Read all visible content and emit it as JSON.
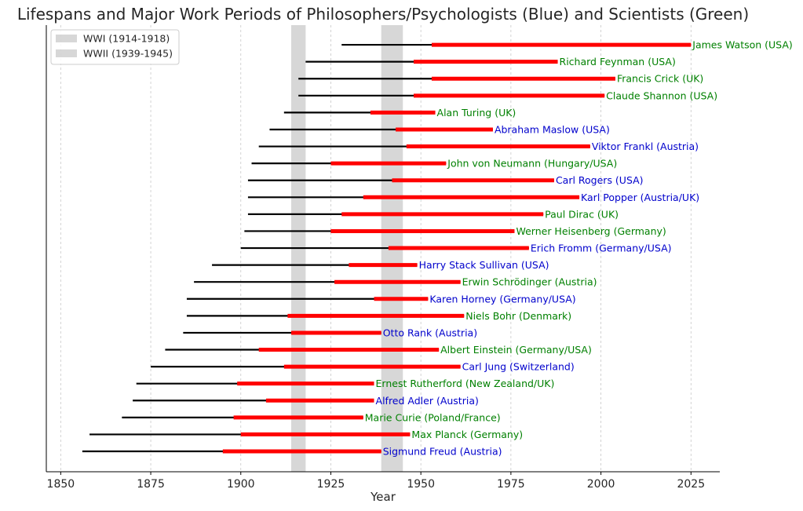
{
  "chart_data": {
    "type": "timeline",
    "title": "Lifespans and Major Work Periods of Philosophers/Psychologists (Blue) and Scientists (Green)",
    "xlabel": "Year",
    "ylabel": "",
    "xlim": [
      1846,
      2033
    ],
    "xticks": [
      1850,
      1875,
      1900,
      1925,
      1950,
      1975,
      2000,
      2025
    ],
    "grid": "vertical-dashed",
    "legend_placement": "top-left",
    "colors": {
      "lifespan": "#000000",
      "work": "#ff0000",
      "philosopher": "#0000cc",
      "scientist": "#008000",
      "war_band": "#a0a0a0"
    },
    "wars": [
      {
        "label": "WWI (1914-1918)",
        "start": 1914,
        "end": 1918
      },
      {
        "label": "WWII (1939-1945)",
        "start": 1939,
        "end": 1945
      }
    ],
    "people": [
      {
        "name": "Sigmund Freud (Austria)",
        "group": "philosopher",
        "born": 1856,
        "died": 1939,
        "work_start": 1895,
        "work_end": 1939
      },
      {
        "name": "Max Planck (Germany)",
        "group": "scientist",
        "born": 1858,
        "died": 1947,
        "work_start": 1900,
        "work_end": 1947
      },
      {
        "name": "Marie Curie (Poland/France)",
        "group": "scientist",
        "born": 1867,
        "died": 1934,
        "work_start": 1898,
        "work_end": 1934
      },
      {
        "name": "Alfred Adler (Austria)",
        "group": "philosopher",
        "born": 1870,
        "died": 1937,
        "work_start": 1907,
        "work_end": 1937
      },
      {
        "name": "Ernest Rutherford (New Zealand/UK)",
        "group": "scientist",
        "born": 1871,
        "died": 1937,
        "work_start": 1899,
        "work_end": 1937
      },
      {
        "name": "Carl Jung (Switzerland)",
        "group": "philosopher",
        "born": 1875,
        "died": 1961,
        "work_start": 1912,
        "work_end": 1961
      },
      {
        "name": "Albert Einstein (Germany/USA)",
        "group": "scientist",
        "born": 1879,
        "died": 1955,
        "work_start": 1905,
        "work_end": 1955
      },
      {
        "name": "Otto Rank (Austria)",
        "group": "philosopher",
        "born": 1884,
        "died": 1939,
        "work_start": 1914,
        "work_end": 1939
      },
      {
        "name": "Niels Bohr (Denmark)",
        "group": "scientist",
        "born": 1885,
        "died": 1962,
        "work_start": 1913,
        "work_end": 1962
      },
      {
        "name": "Karen Horney (Germany/USA)",
        "group": "philosopher",
        "born": 1885,
        "died": 1952,
        "work_start": 1937,
        "work_end": 1952
      },
      {
        "name": "Erwin Schrödinger (Austria)",
        "group": "scientist",
        "born": 1887,
        "died": 1961,
        "work_start": 1926,
        "work_end": 1961
      },
      {
        "name": "Harry Stack Sullivan (USA)",
        "group": "philosopher",
        "born": 1892,
        "died": 1949,
        "work_start": 1930,
        "work_end": 1949
      },
      {
        "name": "Erich Fromm (Germany/USA)",
        "group": "philosopher",
        "born": 1900,
        "died": 1980,
        "work_start": 1941,
        "work_end": 1980
      },
      {
        "name": "Werner Heisenberg (Germany)",
        "group": "scientist",
        "born": 1901,
        "died": 1976,
        "work_start": 1925,
        "work_end": 1976
      },
      {
        "name": "Paul Dirac (UK)",
        "group": "scientist",
        "born": 1902,
        "died": 1984,
        "work_start": 1928,
        "work_end": 1984
      },
      {
        "name": "Karl Popper (Austria/UK)",
        "group": "philosopher",
        "born": 1902,
        "died": 1994,
        "work_start": 1934,
        "work_end": 1994
      },
      {
        "name": "Carl Rogers (USA)",
        "group": "philosopher",
        "born": 1902,
        "died": 1987,
        "work_start": 1942,
        "work_end": 1987
      },
      {
        "name": "John von Neumann (Hungary/USA)",
        "group": "scientist",
        "born": 1903,
        "died": 1957,
        "work_start": 1925,
        "work_end": 1957
      },
      {
        "name": "Viktor Frankl (Austria)",
        "group": "philosopher",
        "born": 1905,
        "died": 1997,
        "work_start": 1946,
        "work_end": 1997
      },
      {
        "name": "Abraham Maslow (USA)",
        "group": "philosopher",
        "born": 1908,
        "died": 1970,
        "work_start": 1943,
        "work_end": 1970
      },
      {
        "name": "Alan Turing (UK)",
        "group": "scientist",
        "born": 1912,
        "died": 1954,
        "work_start": 1936,
        "work_end": 1954
      },
      {
        "name": "Claude Shannon (USA)",
        "group": "scientist",
        "born": 1916,
        "died": 2001,
        "work_start": 1948,
        "work_end": 2001
      },
      {
        "name": "Francis Crick (UK)",
        "group": "scientist",
        "born": 1916,
        "died": 2004,
        "work_start": 1953,
        "work_end": 2004
      },
      {
        "name": "Richard Feynman (USA)",
        "group": "scientist",
        "born": 1918,
        "died": 1988,
        "work_start": 1948,
        "work_end": 1988
      },
      {
        "name": "James Watson (USA)",
        "group": "scientist",
        "born": 1928,
        "died": 2025,
        "work_start": 1953,
        "work_end": 2025
      }
    ]
  }
}
